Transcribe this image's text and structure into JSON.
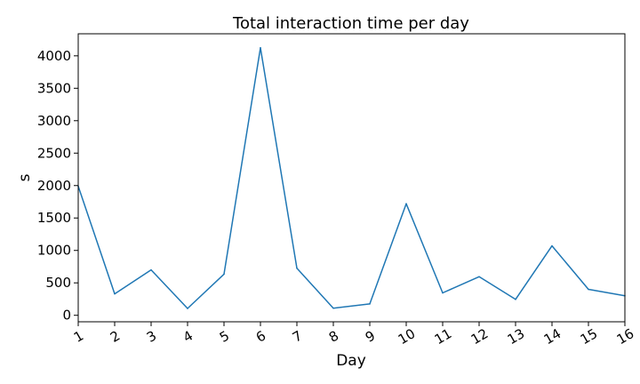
{
  "chart_data": {
    "type": "line",
    "title": "Total interaction time per day",
    "xlabel": "Day",
    "ylabel": "s",
    "categories": [
      "1",
      "2",
      "3",
      "4",
      "5",
      "6",
      "7",
      "8",
      "9",
      "10",
      "11",
      "12",
      "13",
      "14",
      "15",
      "16"
    ],
    "series": [
      {
        "values": [
          1990,
          330,
          700,
          105,
          635,
          4125,
          725,
          110,
          175,
          1720,
          345,
          595,
          245,
          1070,
          400,
          300
        ],
        "color": "#1f77b4"
      }
    ],
    "xlim": [
      1,
      16
    ],
    "ylim": [
      -100,
      4340
    ],
    "yticks": [
      0,
      500,
      1000,
      1500,
      2000,
      2500,
      3000,
      3500,
      4000
    ],
    "grid": false,
    "legend": false
  }
}
